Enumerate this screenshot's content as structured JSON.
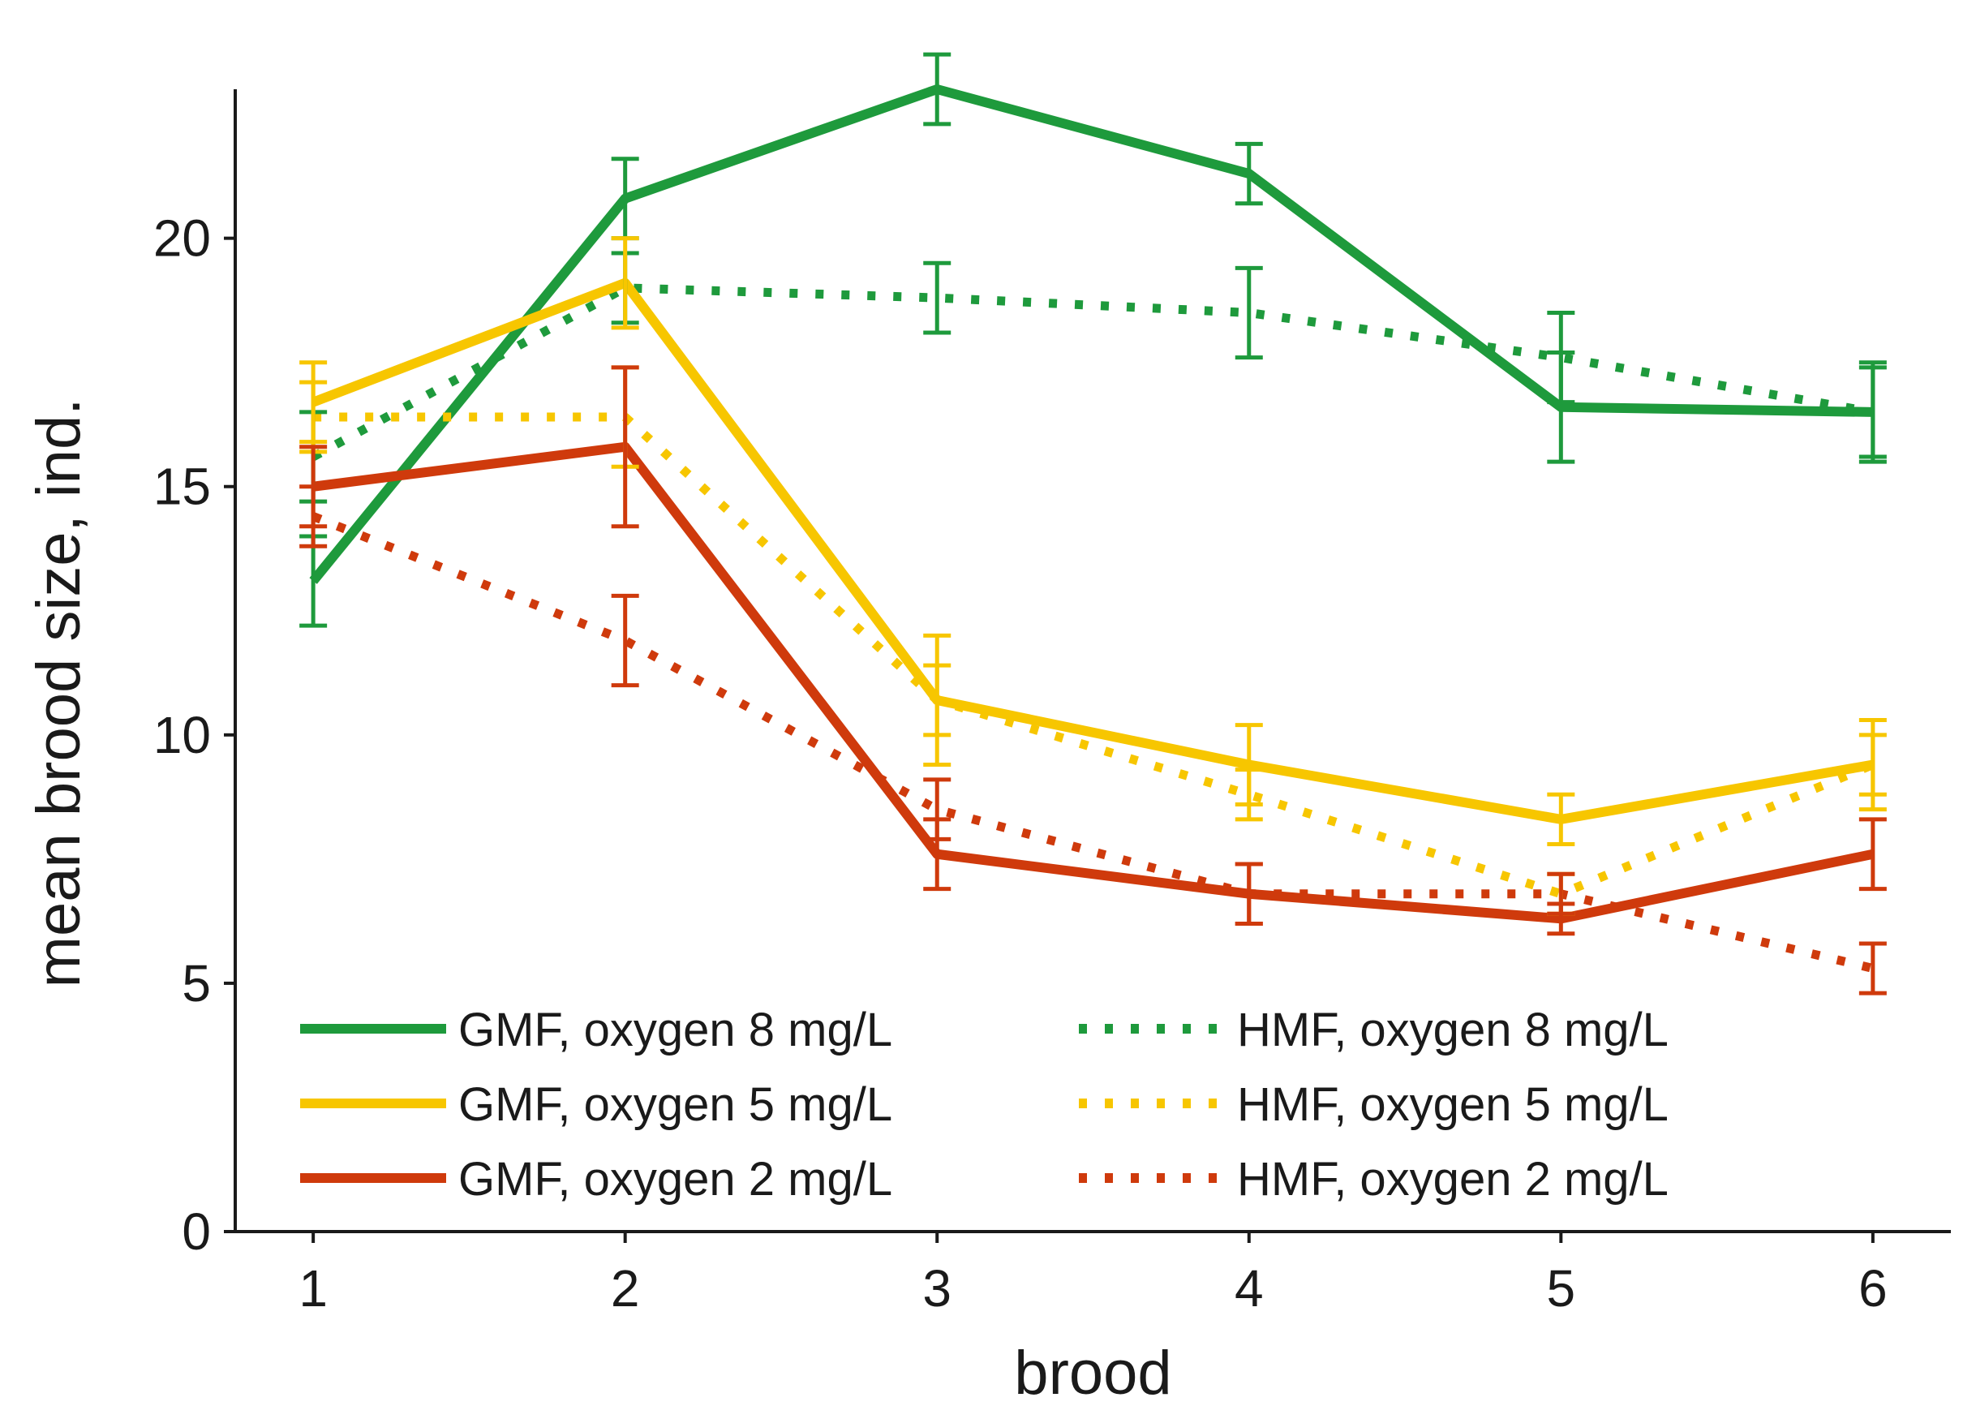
{
  "chart_data": {
    "type": "line",
    "title": "",
    "xlabel": "brood",
    "ylabel": "mean brood size, ind.",
    "categories": [
      1,
      2,
      3,
      4,
      5,
      6
    ],
    "xlim": [
      0.75,
      6.25
    ],
    "ylim": [
      0,
      23
    ],
    "yticks": [
      0,
      5,
      10,
      15,
      20
    ],
    "legend_position": "bottom-left",
    "series": [
      {
        "name": "GMF, oxygen 8 mg/L",
        "color": "#1e9a3c",
        "style": "solid",
        "values": [
          13.1,
          20.8,
          23.0,
          21.3,
          16.6,
          16.5
        ],
        "error": [
          0.9,
          0.8,
          0.7,
          0.6,
          1.1,
          1.0
        ]
      },
      {
        "name": "HMF, oxygen 8 mg/L",
        "color": "#1e9a3c",
        "style": "dotted",
        "values": [
          15.6,
          19.0,
          18.8,
          18.5,
          17.6,
          16.5
        ],
        "error": [
          0.9,
          0.7,
          0.7,
          0.9,
          0.9,
          0.9
        ]
      },
      {
        "name": "GMF, oxygen 5 mg/L",
        "color": "#f7c600",
        "style": "solid",
        "values": [
          16.7,
          19.1,
          10.7,
          9.4,
          8.3,
          9.4
        ],
        "error": [
          0.8,
          0.9,
          1.3,
          0.8,
          0.5,
          0.9
        ]
      },
      {
        "name": "HMF, oxygen 5 mg/L",
        "color": "#f7c600",
        "style": "dotted",
        "values": [
          16.4,
          16.4,
          10.7,
          8.8,
          6.8,
          9.4
        ],
        "error": [
          0.7,
          1.0,
          0.7,
          0.5,
          0.4,
          0.6
        ]
      },
      {
        "name": "GMF, oxygen 2 mg/L",
        "color": "#cf3a0c",
        "style": "solid",
        "values": [
          15.0,
          15.8,
          7.6,
          6.8,
          6.3,
          7.6
        ],
        "error": [
          0.8,
          1.6,
          0.7,
          0.6,
          0.3,
          0.7
        ]
      },
      {
        "name": "HMF, oxygen 2 mg/L",
        "color": "#cf3a0c",
        "style": "dotted",
        "values": [
          14.4,
          11.9,
          8.5,
          6.8,
          6.8,
          5.3
        ],
        "error": [
          0.6,
          0.9,
          0.6,
          0.6,
          0.4,
          0.5
        ]
      }
    ]
  }
}
